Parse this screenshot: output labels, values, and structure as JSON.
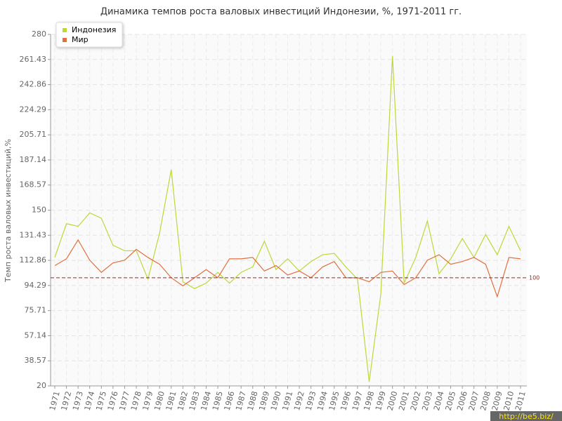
{
  "chart_data": {
    "type": "line",
    "title": "Динамика темпов роста валовых инвестиций Индонезии, %, 1971-2011 гг.",
    "y_label": "Темп роста валовых инвестиций,%",
    "categories": [
      "1971",
      "1972",
      "1973",
      "1974",
      "1975",
      "1976",
      "1977",
      "1978",
      "1979",
      "1980",
      "1981",
      "1982",
      "1983",
      "1984",
      "1985",
      "1986",
      "1987",
      "1988",
      "1989",
      "1990",
      "1991",
      "1992",
      "1993",
      "1994",
      "1995",
      "1996",
      "1997",
      "1998",
      "1999",
      "2000",
      "2001",
      "2002",
      "2003",
      "2004",
      "2005",
      "2006",
      "2007",
      "2008",
      "2009",
      "2010",
      "2011"
    ],
    "series": [
      {
        "name": "Индонезия",
        "color": "#bcd83a",
        "values": [
          115,
          140,
          138,
          148,
          144,
          124,
          120,
          120,
          99,
          133,
          180,
          97,
          92,
          96,
          104,
          96,
          104,
          108,
          127,
          106,
          114,
          105,
          112,
          117,
          118,
          108,
          99,
          23,
          88,
          264,
          96,
          115,
          142,
          103,
          114,
          129,
          115,
          132,
          117,
          138,
          120
        ]
      },
      {
        "name": "Мир",
        "color": "#e0703f",
        "values": [
          109,
          114,
          128,
          113,
          104,
          111,
          113,
          121,
          115,
          110,
          100,
          94,
          100,
          106,
          100,
          114,
          114,
          115,
          105,
          109,
          102,
          105,
          100,
          108,
          112,
          100,
          100,
          97,
          104,
          105,
          95,
          100,
          113,
          117,
          110,
          112,
          115,
          110,
          86,
          115,
          114
        ]
      }
    ],
    "reference_line": 100,
    "reference_color": "#8b2a2a",
    "ylim": [
      20,
      280
    ],
    "yticks": [
      20,
      38.57,
      57.14,
      75.71,
      94.29,
      112.86,
      131.43,
      150,
      168.57,
      187.14,
      205.71,
      224.29,
      242.86,
      261.43,
      280
    ],
    "grid": true,
    "legend": "top-left",
    "watermark": "http://be5.biz/"
  }
}
